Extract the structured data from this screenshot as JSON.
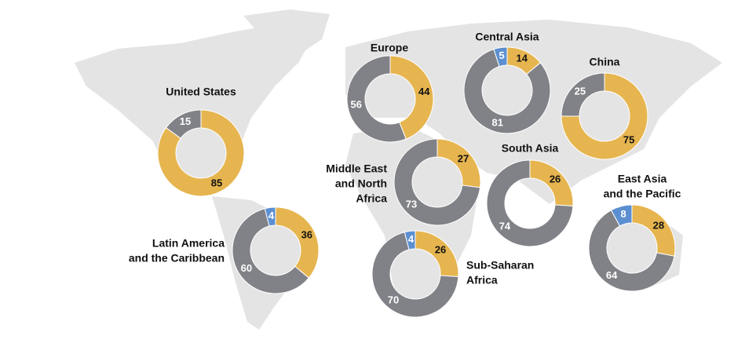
{
  "chart_data": [
    {
      "type": "donut",
      "title": [
        "United States"
      ],
      "values": [
        85,
        15
      ],
      "colors": [
        "#e6b54f",
        "#818287"
      ]
    },
    {
      "type": "donut",
      "title": [
        "Europe"
      ],
      "values": [
        44,
        56
      ],
      "colors": [
        "#e6b54f",
        "#818287"
      ]
    },
    {
      "type": "donut",
      "title": [
        "Central Asia"
      ],
      "values": [
        14,
        81,
        5
      ],
      "colors": [
        "#e6b54f",
        "#818287",
        "#5b8fd1"
      ]
    },
    {
      "type": "donut",
      "title": [
        "China"
      ],
      "values": [
        75,
        25
      ],
      "colors": [
        "#e6b54f",
        "#818287"
      ]
    },
    {
      "type": "donut",
      "title": [
        "Middle East",
        "and North",
        "Africa"
      ],
      "values": [
        27,
        73
      ],
      "colors": [
        "#e6b54f",
        "#818287"
      ]
    },
    {
      "type": "donut",
      "title": [
        "South Asia"
      ],
      "values": [
        26,
        74
      ],
      "colors": [
        "#e6b54f",
        "#818287"
      ]
    },
    {
      "type": "donut",
      "title": [
        "East Asia",
        "and the Pacific"
      ],
      "values": [
        28,
        64,
        8
      ],
      "colors": [
        "#e6b54f",
        "#818287",
        "#5b8fd1"
      ]
    },
    {
      "type": "donut",
      "title": [
        "Latin America",
        "and the Caribbean"
      ],
      "values": [
        36,
        60,
        4
      ],
      "colors": [
        "#e6b54f",
        "#818287",
        "#5b8fd1"
      ]
    },
    {
      "type": "donut",
      "title": [
        "Sub-Saharan",
        "Africa"
      ],
      "values": [
        26,
        70,
        4
      ],
      "colors": [
        "#e6b54f",
        "#818287",
        "#5b8fd1"
      ]
    }
  ]
}
